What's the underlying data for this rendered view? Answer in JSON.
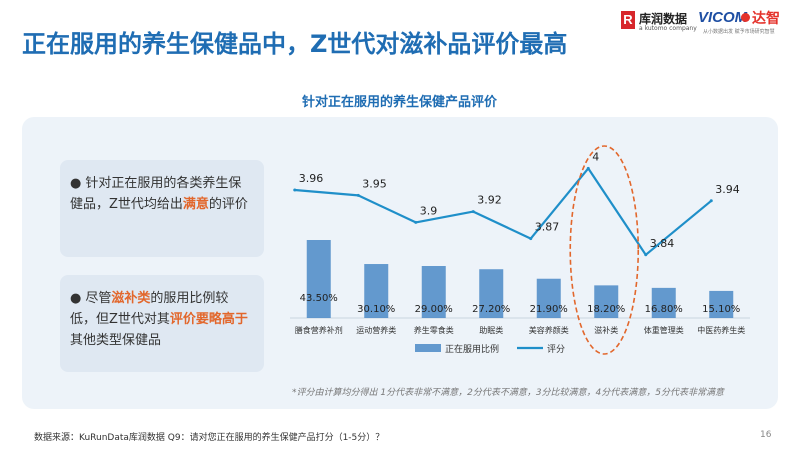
{
  "header": {
    "title": "正在服用的养生保健品中，Z世代对滋补品评价最高",
    "logo_kurun_mark": "R",
    "logo_kurun_name": "库润数据",
    "logo_kurun_sub": "a kutomo company",
    "logo_vicom_name": "VICOM",
    "logo_vicom_cn": "达智",
    "logo_vicom_sub": "从小数据出发  赋予市场研究智慧"
  },
  "chart_data": {
    "type": "bar",
    "title": "针对正在服用的养生保健产品评价",
    "categories": [
      "膳食营养补剂",
      "运动营养类",
      "养生零食类",
      "助眠类",
      "美容养颜类",
      "滋补类",
      "体重管理类",
      "中医药养生类"
    ],
    "series": [
      {
        "name": "正在服用比例",
        "type": "bar",
        "values": [
          43.5,
          30.1,
          29.0,
          27.2,
          21.9,
          18.2,
          16.8,
          15.1
        ],
        "labels": [
          "43.50%",
          "30.10%",
          "29.00%",
          "27.20%",
          "21.90%",
          "18.20%",
          "16.80%",
          "15.10%"
        ],
        "color": "#4a88c7"
      },
      {
        "name": "评分",
        "type": "line",
        "values": [
          3.96,
          3.95,
          3.9,
          3.92,
          3.87,
          4,
          3.84,
          3.94
        ],
        "labels": [
          "3.96",
          "3.95",
          "3.9",
          "3.92",
          "3.87",
          "4",
          "3.84",
          "3.94"
        ],
        "color": "#1f8fc9"
      }
    ],
    "highlight_category": "滋补类",
    "highlight_color": "#e2672c",
    "legend_position": "bottom"
  },
  "insights": {
    "card1_bullet": "●",
    "card1_pre": "针对正在服用的各类养生保健品，Z世代均给出",
    "card1_hl": "满意",
    "card1_post": "的评价",
    "card2_bullet": "●",
    "card2_pre": "尽管",
    "card2_hl1": "滋补类",
    "card2_mid": "的服用比例较低，但Z世代对其",
    "card2_hl2": "评价要略高于",
    "card2_post": "其他类型保健品"
  },
  "footnote": "*评分由计算均分得出 1分代表非常不满意，2分代表不满意，3分比较满意，4分代表满意，5分代表非常满意",
  "source": "数据来源：KuRunData库润数据 Q9：请对您正在服用的养生保健产品打分（1-5分）？",
  "page_number": "16"
}
